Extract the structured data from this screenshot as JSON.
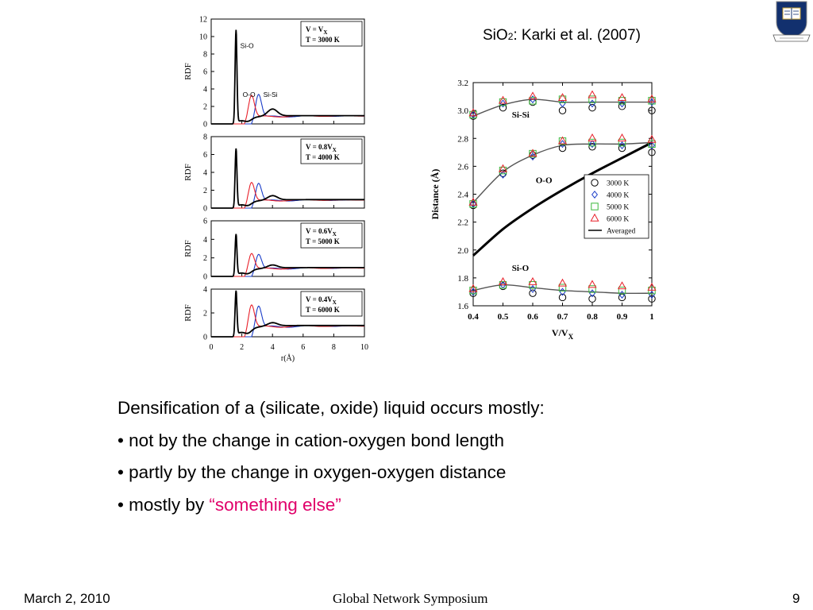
{
  "citation": {
    "formula_main": "SiO",
    "formula_sub": "2",
    "rest": ": Karki et al. (2007)"
  },
  "bullets": {
    "intro": "Densification of a (silicate, oxide) liquid occurs mostly:",
    "b1": "• not by the change in cation-oxygen bond length",
    "b2": "• partly by the change in oxygen-oxygen distance",
    "b3_prefix": "• mostly by ",
    "open_quote": "“",
    "b3_highlight": "something else",
    "close_quote": "”"
  },
  "footer": {
    "date": "March 2, 2010",
    "center": "Global Network Symposium",
    "page": "9"
  },
  "colors": {
    "highlight": "#e0006a",
    "black": "#000000",
    "red": "#e8202a",
    "blue": "#1a3cc8",
    "green": "#3cb83c",
    "crest_blue": "#12306e"
  },
  "chart_data": [
    {
      "type": "line",
      "title": "",
      "xlabel": "r(Å)",
      "ylabel": "RDF",
      "xlim": [
        0,
        10
      ],
      "xticks": [
        "0",
        "2",
        "4",
        "6",
        "8",
        "10"
      ],
      "panels": [
        {
          "ylim": [
            0,
            12
          ],
          "yticks": [
            "0",
            "2",
            "4",
            "6",
            "8",
            "10",
            "12"
          ],
          "label_v": "V = V",
          "label_v_sub": "X",
          "label_t": "T = 3000 K",
          "curve_labels": [
            {
              "text": "Si-O",
              "x": 1.9,
              "y": 8.7
            },
            {
              "text": "O-O",
              "x": 2.05,
              "y": 3.1
            },
            {
              "text": "Si-Si",
              "x": 3.4,
              "y": 3.1
            }
          ],
          "peaks": {
            "sio": 10.6,
            "oo": 2.8,
            "sisi": 2.9
          }
        },
        {
          "ylim": [
            0,
            8
          ],
          "yticks": [
            "0",
            "2",
            "4",
            "6",
            "8"
          ],
          "label_v": "V = 0.8V",
          "label_v_sub": "X",
          "label_t": "T = 4000 K",
          "curve_labels": [],
          "peaks": {
            "sio": 6.5,
            "oo": 2.4,
            "sisi": 2.3
          }
        },
        {
          "ylim": [
            0,
            6
          ],
          "yticks": [
            "0",
            "2",
            "4",
            "6"
          ],
          "label_v": "V = 0.6V",
          "label_v_sub": "X",
          "label_t": "T = 5000 K",
          "curve_labels": [],
          "peaks": {
            "sio": 4.4,
            "oo": 2.0,
            "sisi": 1.9
          }
        },
        {
          "ylim": [
            0,
            4
          ],
          "yticks": [
            "0",
            "2",
            "4"
          ],
          "label_v": "V = 0.4V",
          "label_v_sub": "X",
          "label_t": "T = 6000 K",
          "curve_labels": [],
          "peaks": {
            "sio": 3.7,
            "oo": 2.2,
            "sisi": 2.1
          }
        }
      ],
      "series": [
        {
          "name": "Si-O"
        },
        {
          "name": "O-O"
        },
        {
          "name": "Si-Si"
        }
      ]
    },
    {
      "type": "scatter",
      "title": "",
      "xlabel": "V/V",
      "xlabel_sub": "X",
      "ylabel": "Distance (Å)",
      "xlim": [
        0.4,
        1.0
      ],
      "ylim": [
        1.6,
        3.2
      ],
      "xticks": [
        "0.4",
        "0.5",
        "0.6",
        "0.7",
        "0.8",
        "0.9",
        "1"
      ],
      "yticks": [
        "1.6",
        "1.8",
        "2.0",
        "2.2",
        "2.4",
        "2.6",
        "2.8",
        "3.0",
        "3.2"
      ],
      "x": [
        0.4,
        0.5,
        0.6,
        0.7,
        0.8,
        0.9,
        1.0
      ],
      "group_labels": [
        {
          "text": "Si-Si",
          "x": 0.53,
          "y": 2.95
        },
        {
          "text": "O-O",
          "x": 0.61,
          "y": 2.48
        },
        {
          "text": "Si-O",
          "x": 0.53,
          "y": 1.85
        }
      ],
      "series": [
        {
          "name": "3000 K",
          "marker": "circle",
          "color": "#000000",
          "SiSi": [
            2.96,
            3.02,
            3.06,
            3.0,
            3.02,
            3.03,
            3.0
          ],
          "OO": [
            2.32,
            2.55,
            2.68,
            2.73,
            2.74,
            2.73,
            2.7
          ],
          "SiO": [
            1.69,
            1.74,
            1.69,
            1.66,
            1.65,
            1.66,
            1.65
          ]
        },
        {
          "name": "4000 K",
          "marker": "diamond",
          "color": "#1a3cc8",
          "SiSi": [
            2.97,
            3.05,
            3.08,
            3.05,
            3.05,
            3.05,
            3.06
          ],
          "OO": [
            2.33,
            2.54,
            2.67,
            2.76,
            2.76,
            2.75,
            2.75
          ],
          "SiO": [
            1.7,
            1.75,
            1.72,
            1.7,
            1.69,
            1.68,
            1.68
          ]
        },
        {
          "name": "5000 K",
          "marker": "square",
          "color": "#3cb83c",
          "SiSi": [
            2.97,
            3.06,
            3.07,
            3.08,
            3.08,
            3.07,
            3.07
          ],
          "OO": [
            2.33,
            2.57,
            2.69,
            2.78,
            2.77,
            2.77,
            2.76
          ],
          "SiO": [
            1.71,
            1.75,
            1.75,
            1.73,
            1.72,
            1.71,
            1.71
          ]
        },
        {
          "name": "6000 K",
          "marker": "triangle",
          "color": "#e8202a",
          "SiSi": [
            2.98,
            3.07,
            3.1,
            3.09,
            3.11,
            3.09,
            3.08
          ],
          "OO": [
            2.34,
            2.58,
            2.69,
            2.78,
            2.8,
            2.8,
            2.79
          ],
          "SiO": [
            1.72,
            1.77,
            1.77,
            1.76,
            1.75,
            1.74,
            1.73
          ]
        },
        {
          "name": "Averaged",
          "marker": "line",
          "color": "#000000",
          "values": [
            1.96,
            2.15,
            2.3,
            2.43,
            2.55,
            2.66,
            2.77
          ]
        }
      ],
      "fit_lines": {
        "SiSi": [
          2.96,
          3.04,
          3.08,
          3.06,
          3.06,
          3.06,
          3.06
        ],
        "OO": [
          2.34,
          2.56,
          2.68,
          2.75,
          2.76,
          2.76,
          2.77
        ],
        "SiO": [
          1.71,
          1.75,
          1.73,
          1.71,
          1.7,
          1.69,
          1.69
        ]
      }
    }
  ]
}
